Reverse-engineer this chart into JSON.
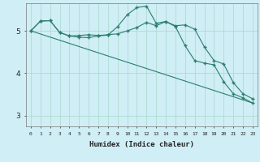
{
  "xlabel": "Humidex (Indice chaleur)",
  "bg_color": "#d0eef5",
  "line_color": "#2a7d6e",
  "grid_color": "#a8d8cc",
  "xlim": [
    -0.5,
    23.5
  ],
  "ylim": [
    2.75,
    5.65
  ],
  "yticks": [
    3,
    4,
    5
  ],
  "xticks": [
    0,
    1,
    2,
    3,
    4,
    5,
    6,
    7,
    8,
    9,
    10,
    11,
    12,
    13,
    14,
    15,
    16,
    17,
    18,
    19,
    20,
    21,
    22,
    23
  ],
  "line1_x": [
    0,
    1,
    2,
    3,
    4,
    5,
    6,
    7,
    8,
    9,
    10,
    11,
    12,
    13,
    14,
    15,
    16,
    17,
    18,
    19,
    20,
    21,
    22,
    23
  ],
  "line1_y": [
    5.0,
    5.23,
    5.24,
    4.96,
    4.88,
    4.89,
    4.91,
    4.89,
    4.91,
    4.93,
    5.0,
    5.08,
    5.2,
    5.12,
    5.22,
    5.12,
    5.14,
    5.04,
    4.62,
    4.3,
    4.22,
    3.78,
    3.52,
    3.4
  ],
  "line2_x": [
    0,
    1,
    2,
    3,
    4,
    5,
    6,
    7,
    8,
    9,
    10,
    11,
    12,
    13,
    14,
    15,
    16,
    17,
    18,
    19,
    20,
    21,
    22,
    23
  ],
  "line2_y": [
    5.0,
    5.23,
    5.24,
    4.96,
    4.88,
    4.85,
    4.84,
    4.88,
    4.9,
    5.1,
    5.38,
    5.55,
    5.58,
    5.18,
    5.22,
    5.1,
    4.65,
    4.3,
    4.24,
    4.2,
    3.8,
    3.52,
    3.42,
    3.3
  ],
  "line3_x": [
    0,
    23
  ],
  "line3_y": [
    5.0,
    3.3
  ]
}
